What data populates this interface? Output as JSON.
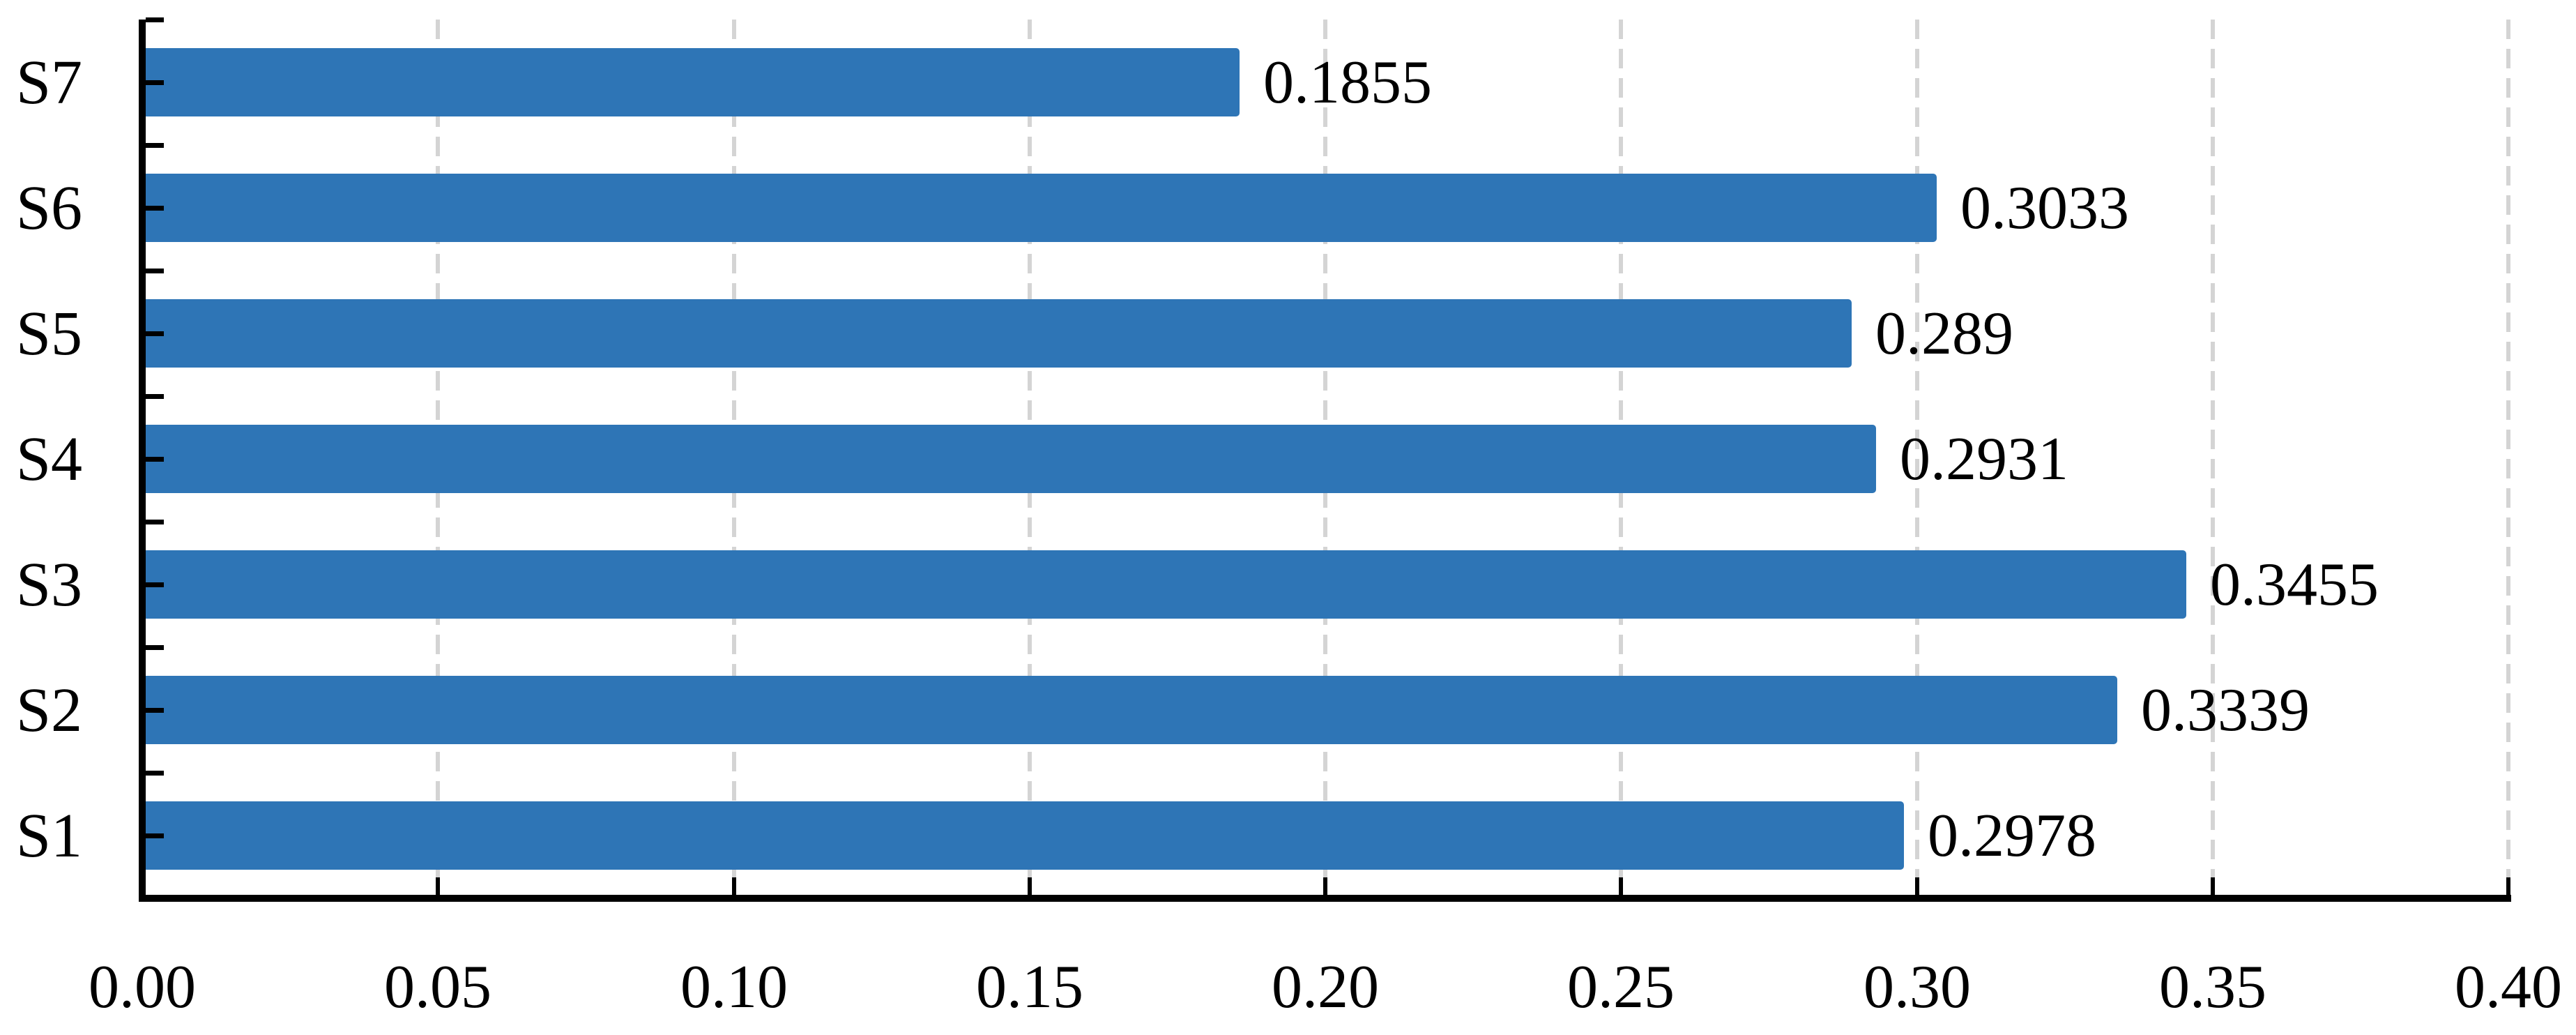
{
  "chart_data": {
    "type": "bar",
    "orientation": "horizontal",
    "title": "",
    "row_order": "top_to_bottom",
    "rows": [
      {
        "category": "S7",
        "value": 0.1855,
        "value_label": "0.1855"
      },
      {
        "category": "S6",
        "value": 0.3033,
        "value_label": "0.3033"
      },
      {
        "category": "S5",
        "value": 0.289,
        "value_label": "0.289"
      },
      {
        "category": "S4",
        "value": 0.2931,
        "value_label": "0.2931"
      },
      {
        "category": "S3",
        "value": 0.3455,
        "value_label": "0.3455"
      },
      {
        "category": "S2",
        "value": 0.3339,
        "value_label": "0.3339"
      },
      {
        "category": "S1",
        "value": 0.2978,
        "value_label": "0.2978"
      }
    ],
    "categories": [
      "S1",
      "S2",
      "S3",
      "S4",
      "S5",
      "S6",
      "S7"
    ],
    "values_bottom_to_top": [
      0.2978,
      0.3339,
      0.3455,
      0.2931,
      0.289,
      0.3033,
      0.1855
    ],
    "xlabel": "",
    "ylabel": "",
    "x_axis": {
      "min": 0,
      "max": 0.4,
      "tick_step": 0.05,
      "tick_labels": [
        "0.00",
        "0.05",
        "0.10",
        "0.15",
        "0.20",
        "0.25",
        "0.30",
        "0.35",
        "0.40"
      ]
    },
    "grid": "vertical-dashed",
    "legend": "none",
    "data_labels": "outside-end",
    "colors": {
      "bar": "#2E75B6",
      "gridline": "#D4D4D4",
      "axis": "#000000",
      "text": "#000000",
      "background": "#FFFFFF"
    }
  }
}
